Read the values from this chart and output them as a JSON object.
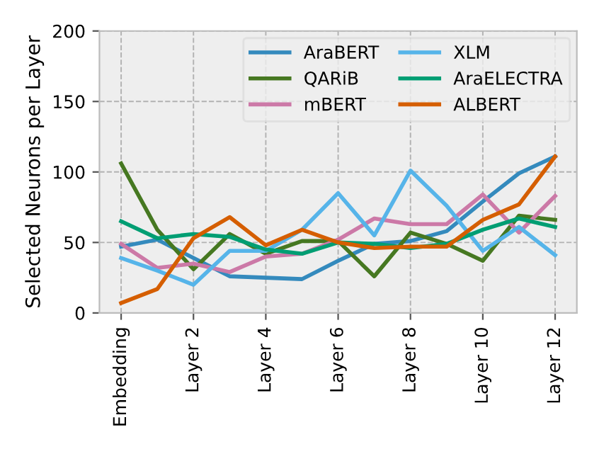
{
  "chart_data": {
    "type": "line",
    "ylabel": "Selected Neurons per Layer",
    "categories": [
      "Embedding",
      null,
      "Layer 2",
      null,
      "Layer 4",
      null,
      "Layer 6",
      null,
      "Layer 8",
      null,
      "Layer 10",
      null,
      "Layer 12"
    ],
    "series": [
      {
        "name": "AraBERT",
        "color": "#348abd",
        "values": [
          47,
          52,
          39,
          26,
          25,
          24,
          37,
          49,
          51,
          58,
          79,
          99,
          111
        ]
      },
      {
        "name": "QARiB",
        "color": "#467821",
        "values": [
          106,
          59,
          31,
          56,
          42,
          51,
          51,
          26,
          57,
          49,
          37,
          69,
          66
        ]
      },
      {
        "name": "mBERT",
        "color": "#cc79a7",
        "values": [
          49,
          32,
          35,
          29,
          40,
          42,
          52,
          67,
          63,
          63,
          84,
          57,
          83
        ]
      },
      {
        "name": "XLM",
        "color": "#56b4e9",
        "values": [
          39,
          30,
          20,
          44,
          44,
          59,
          85,
          55,
          101,
          76,
          44,
          61,
          41
        ]
      },
      {
        "name": "AraELECTRA",
        "color": "#009e73",
        "values": [
          65,
          53,
          56,
          54,
          45,
          42,
          50,
          49,
          46,
          49,
          59,
          67,
          61
        ]
      },
      {
        "name": "ALBERT",
        "color": "#d55e00",
        "values": [
          7,
          17,
          53,
          68,
          48,
          59,
          50,
          46,
          47,
          47,
          66,
          77,
          111
        ]
      }
    ],
    "ylim": [
      0,
      200
    ],
    "yticks": [
      0,
      50,
      100,
      150,
      200
    ],
    "grid": true,
    "legend": "top right"
  }
}
